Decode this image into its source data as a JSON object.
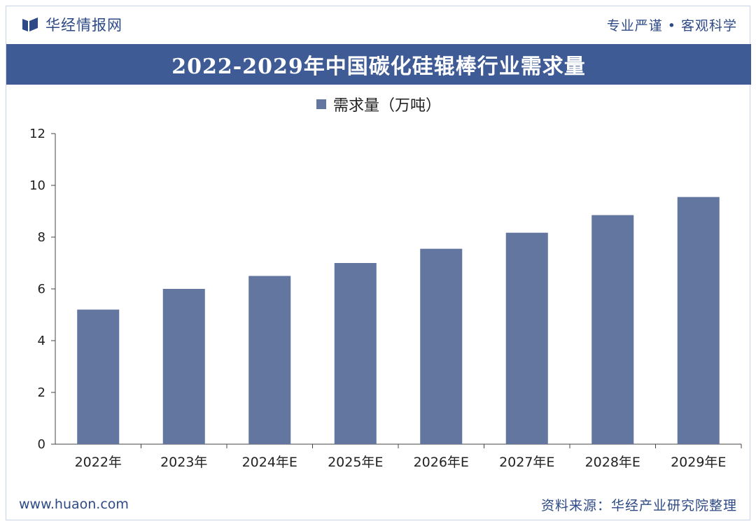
{
  "header": {
    "brand_name": "华经情报网",
    "slogan": "专业严谨 • 客观科学"
  },
  "footer": {
    "site": "www.huaon.com",
    "source": "资料来源：华经产业研究院整理"
  },
  "colors": {
    "brand": "#2e4a86",
    "title_bar": "#3f5b95",
    "bar": "#62769f"
  },
  "chart_data": {
    "type": "bar",
    "title": "2022-2029年中国碳化硅辊棒行业需求量",
    "categories": [
      "2022年",
      "2023年",
      "2024年E",
      "2025年E",
      "2026年E",
      "2027年E",
      "2028年E",
      "2029年E"
    ],
    "series": [
      {
        "name": "需求量（万吨）",
        "values": [
          5.2,
          6.0,
          6.5,
          7.0,
          7.55,
          8.17,
          8.85,
          9.55
        ]
      }
    ],
    "ylim": [
      0,
      12
    ],
    "yticks": [
      0,
      2,
      4,
      6,
      8,
      10,
      12
    ],
    "legend": "top-center",
    "grid": false
  }
}
